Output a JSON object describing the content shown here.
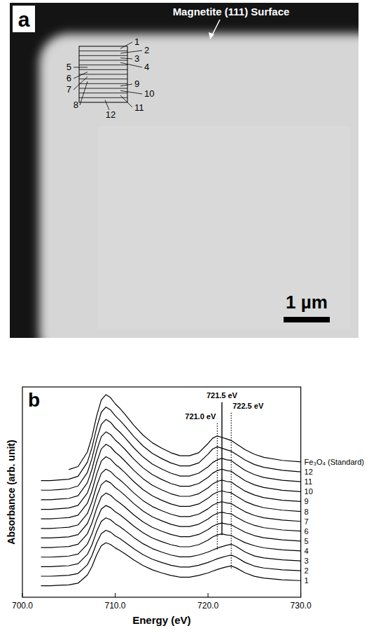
{
  "micrograph": {
    "panel_label": "a",
    "surface_label": "Magnetite (111) Surface",
    "regions": [
      1,
      2,
      3,
      4,
      5,
      6,
      7,
      8,
      9,
      10,
      11,
      12
    ],
    "scale_bar": "1 µm"
  },
  "chart_data": {
    "type": "line",
    "panel_label": "b",
    "x_label": "Energy (eV)",
    "y_label": "Absorbance (arb. unit)",
    "x": [
      702,
      703,
      704,
      705,
      706,
      707,
      707.5,
      708,
      708.5,
      709,
      709.5,
      710,
      710.5,
      711,
      712,
      713,
      714,
      715,
      716,
      717,
      718,
      719,
      720,
      720.5,
      721,
      721.5,
      722,
      722.5,
      723,
      724,
      725,
      726,
      728,
      730
    ],
    "xlim": [
      700,
      730
    ],
    "xticks": [
      {
        "value": 700,
        "label": "700.0"
      },
      {
        "value": 710,
        "label": "710.0"
      },
      {
        "value": 720,
        "label": "720.0"
      },
      {
        "value": 730,
        "label": "730.0"
      }
    ],
    "ylim": [
      0,
      22
    ],
    "tick_labels": "x",
    "series": [
      {
        "name": "1",
        "color": "#000000",
        "values": [
          1.2,
          1.2,
          1.25,
          1.29,
          1.47,
          2.33,
          3.23,
          4.44,
          5.39,
          5.7,
          5.52,
          5.16,
          4.89,
          4.58,
          3.9,
          3.32,
          2.87,
          2.55,
          2.28,
          2.1,
          2.1,
          2.28,
          2.55,
          2.73,
          2.91,
          3.05,
          3.18,
          3.27,
          3.09,
          2.55,
          2.19,
          2.01,
          1.83,
          1.74
        ]
      },
      {
        "name": "2",
        "color": "#000000",
        "values": [
          2.2,
          2.2,
          2.25,
          2.3,
          2.49,
          3.4,
          4.36,
          5.66,
          6.66,
          7.0,
          6.81,
          6.42,
          6.14,
          5.8,
          5.08,
          4.46,
          3.98,
          3.64,
          3.35,
          3.16,
          3.16,
          3.35,
          3.64,
          3.83,
          4.02,
          4.17,
          4.31,
          4.41,
          4.22,
          3.64,
          3.26,
          3.06,
          2.87,
          2.78
        ]
      },
      {
        "name": "3",
        "color": "#000000",
        "values": [
          3.2,
          3.2,
          3.25,
          3.3,
          3.51,
          4.48,
          5.5,
          6.87,
          7.94,
          8.3,
          8.1,
          7.69,
          7.38,
          7.03,
          6.26,
          5.6,
          5.09,
          4.73,
          4.42,
          4.22,
          4.22,
          4.42,
          4.73,
          4.93,
          5.14,
          5.29,
          5.44,
          5.55,
          5.34,
          4.73,
          4.32,
          4.12,
          3.91,
          3.81
        ]
      },
      {
        "name": "4",
        "color": "#000000",
        "values": [
          4.2,
          4.2,
          4.25,
          4.31,
          4.52,
          5.55,
          6.63,
          8.09,
          9.22,
          9.6,
          9.38,
          8.95,
          8.63,
          8.25,
          7.44,
          6.74,
          6.2,
          5.82,
          5.5,
          5.28,
          5.28,
          5.5,
          5.98,
          6.31,
          6.52,
          6.63,
          6.52,
          6.47,
          6.2,
          5.71,
          5.39,
          5.17,
          4.96,
          4.85
        ]
      },
      {
        "name": "5",
        "color": "#000000",
        "values": [
          5.2,
          5.2,
          5.26,
          5.31,
          5.54,
          6.63,
          7.77,
          9.3,
          10.5,
          10.9,
          10.67,
          10.22,
          9.87,
          9.48,
          8.62,
          7.88,
          7.31,
          6.91,
          6.57,
          6.34,
          6.34,
          6.57,
          7.08,
          7.42,
          7.65,
          7.77,
          7.65,
          7.59,
          7.31,
          6.8,
          6.45,
          6.23,
          6.0,
          5.88
        ]
      },
      {
        "name": "6",
        "color": "#000000",
        "values": [
          6.2,
          6.2,
          6.26,
          6.32,
          6.56,
          7.7,
          8.9,
          10.52,
          11.78,
          12.2,
          11.96,
          11.48,
          11.12,
          10.7,
          9.8,
          9.02,
          8.42,
          8.0,
          7.64,
          7.4,
          7.4,
          7.64,
          8.18,
          8.54,
          8.78,
          8.9,
          8.78,
          8.72,
          8.42,
          7.88,
          7.52,
          7.28,
          7.04,
          6.92
        ]
      },
      {
        "name": "7",
        "color": "#000000",
        "values": [
          7.2,
          7.2,
          7.26,
          7.32,
          7.57,
          8.75,
          9.99,
          11.66,
          12.97,
          13.4,
          13.15,
          12.66,
          12.28,
          11.85,
          10.92,
          10.11,
          9.49,
          9.06,
          8.69,
          8.44,
          8.44,
          8.69,
          9.25,
          9.62,
          9.87,
          9.99,
          9.87,
          9.8,
          9.49,
          8.94,
          8.56,
          8.32,
          8.07,
          7.94
        ]
      },
      {
        "name": "8",
        "color": "#000000",
        "values": [
          8.2,
          8.2,
          8.27,
          8.33,
          8.59,
          9.83,
          11.13,
          12.88,
          14.25,
          14.7,
          14.44,
          13.92,
          13.53,
          13.08,
          12.1,
          11.26,
          10.61,
          10.15,
          9.76,
          9.5,
          9.5,
          9.76,
          10.35,
          10.74,
          11.0,
          11.13,
          11.0,
          10.93,
          10.61,
          10.02,
          9.63,
          9.37,
          9.11,
          8.98
        ]
      },
      {
        "name": "9",
        "color": "#000000",
        "values": [
          9.2,
          9.2,
          9.27,
          9.34,
          9.61,
          10.9,
          12.26,
          14.1,
          15.52,
          16.0,
          15.73,
          15.18,
          14.78,
          14.3,
          13.28,
          12.4,
          11.72,
          11.24,
          10.83,
          10.56,
          10.56,
          10.83,
          11.44,
          11.85,
          12.12,
          12.26,
          12.12,
          12.06,
          11.72,
          11.1,
          10.7,
          10.42,
          10.15,
          10.02
        ]
      },
      {
        "name": "10",
        "color": "#000000",
        "values": [
          10.2,
          10.2,
          10.27,
          10.34,
          10.63,
          11.98,
          13.4,
          15.31,
          16.8,
          17.3,
          17.02,
          16.45,
          16.02,
          15.53,
          14.46,
          13.54,
          12.83,
          12.33,
          11.9,
          11.62,
          11.62,
          11.9,
          12.54,
          12.97,
          13.25,
          13.4,
          13.25,
          13.18,
          12.83,
          12.19,
          11.76,
          11.48,
          11.19,
          11.05
        ]
      },
      {
        "name": "11",
        "color": "#000000",
        "values": [
          11.2,
          11.2,
          11.27,
          11.35,
          11.64,
          13.05,
          14.53,
          16.53,
          18.08,
          18.6,
          18.3,
          17.71,
          17.27,
          16.75,
          15.64,
          14.68,
          13.94,
          13.42,
          12.98,
          12.68,
          12.68,
          12.98,
          13.64,
          14.09,
          14.38,
          14.53,
          14.38,
          14.31,
          13.94,
          13.27,
          12.83,
          12.53,
          12.24,
          12.09
        ]
      },
      {
        "name": "12",
        "color": "#000000",
        "values": [
          12.2,
          12.2,
          12.28,
          12.35,
          12.66,
          14.13,
          15.67,
          17.74,
          19.36,
          19.9,
          19.59,
          18.98,
          18.51,
          17.98,
          16.82,
          15.82,
          15.05,
          14.51,
          14.05,
          13.74,
          13.74,
          14.05,
          14.97,
          15.51,
          15.74,
          15.59,
          15.43,
          15.28,
          14.97,
          14.36,
          13.89,
          13.59,
          13.28,
          13.12
        ]
      },
      {
        "name": "Fe₃O₄ (Standard)",
        "color": "#000000",
        "values": [
          null,
          null,
          null,
          13.36,
          13.68,
          15.2,
          16.8,
          18.96,
          20.64,
          21.2,
          20.88,
          20.24,
          19.76,
          19.2,
          18.0,
          16.96,
          16.16,
          15.6,
          15.12,
          14.8,
          14.8,
          15.12,
          16.08,
          16.64,
          16.88,
          16.72,
          16.56,
          16.4,
          16.08,
          15.44,
          14.96,
          14.64,
          14.32,
          14.16
        ]
      }
    ],
    "annotations": [
      {
        "text": "721.5 eV",
        "x": 721.5,
        "y_range": [
          6.5,
          20.4
        ],
        "line_style": "solid"
      },
      {
        "text": "721.0 eV",
        "x": 721.0,
        "y_range": [
          5.0,
          18.2
        ],
        "line_style": "dotted"
      },
      {
        "text": "722.5 eV",
        "x": 722.5,
        "y_range": [
          3.0,
          19.3
        ],
        "line_style": "dotted"
      }
    ]
  }
}
